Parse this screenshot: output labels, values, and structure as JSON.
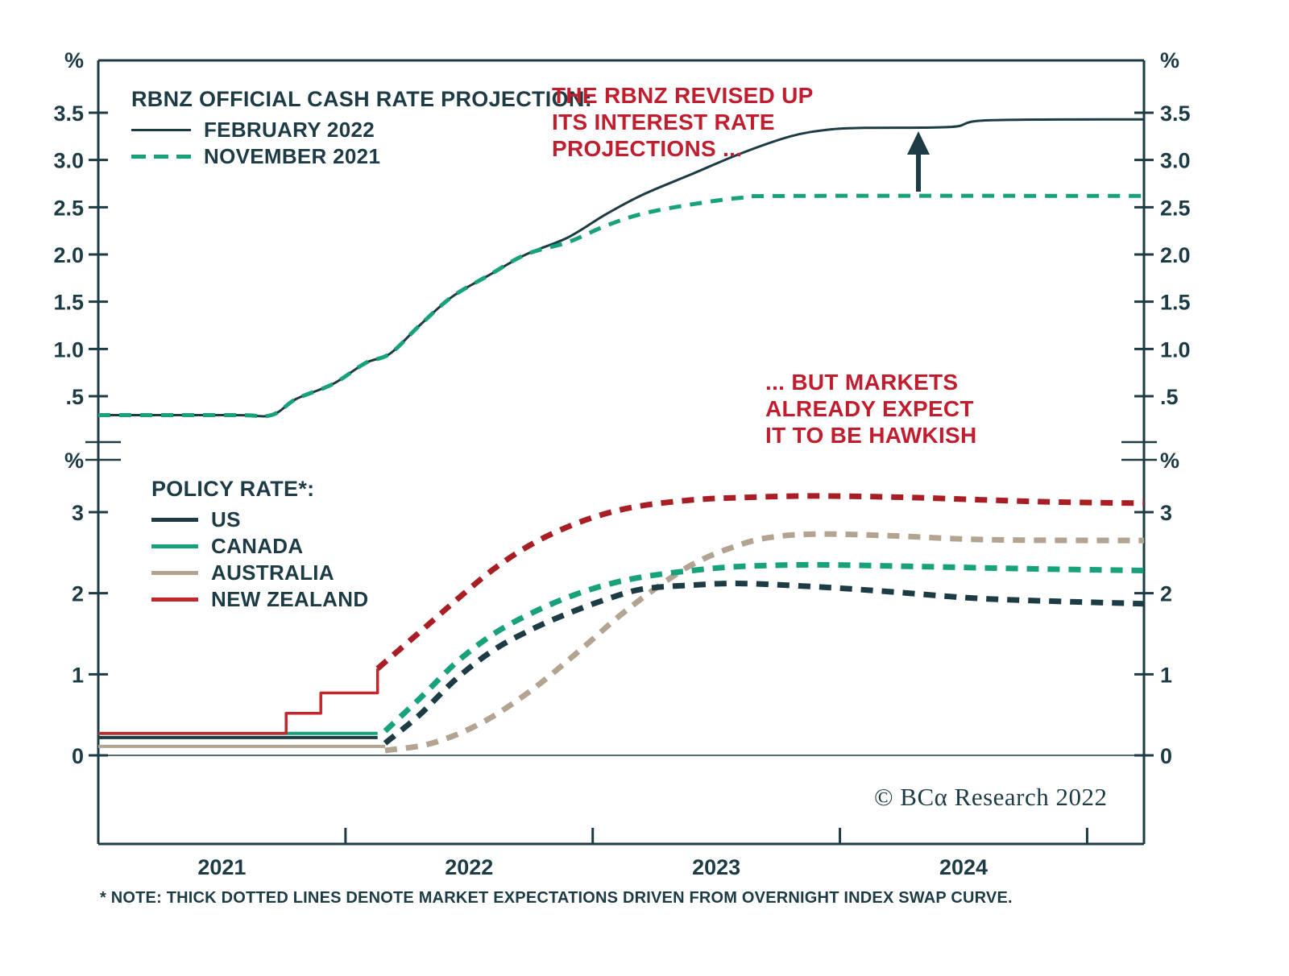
{
  "colors": {
    "dark": "#1d3b45",
    "green": "#17a27b",
    "red_annotation": "#c01e2e",
    "nz_red": "#c1272d",
    "nz_dashed_red": "#a81e24",
    "tan": "#b3a492"
  },
  "top_legend": {
    "title": "RBNZ OFFICIAL CASH RATE PROJECTION:",
    "items": [
      {
        "label": "FEBRUARY 2022",
        "style": "solid",
        "color_key": "dark"
      },
      {
        "label": "NOVEMBER 2021",
        "style": "dashed",
        "color_key": "green"
      }
    ]
  },
  "bottom_legend": {
    "title": "POLICY RATE*:",
    "items": [
      {
        "label": "US",
        "color_key": "dark"
      },
      {
        "label": "CANADA",
        "color_key": "green"
      },
      {
        "label": "AUSTRALIA",
        "color_key": "tan"
      },
      {
        "label": "NEW ZEALAND",
        "color_key": "nz_red"
      }
    ]
  },
  "annotations": {
    "top": "THE RBNZ REVISED UP\nITS INTEREST RATE\nPROJECTIONS ...",
    "bottom": "... BUT MARKETS\nALREADY EXPECT\nIT TO BE HAWKISH"
  },
  "copyright": "© BCα Research 2022",
  "footer_note": "* NOTE: THICK DOTTED LINES DENOTE MARKET EXPECTATIONS DRIVEN FROM OVERNIGHT INDEX SWAP CURVE.",
  "chart_data": {
    "type": "line",
    "x_axis": {
      "range": [
        2021.0,
        2025.23
      ],
      "tick_positions": [
        2022,
        2023,
        2024,
        2025
      ],
      "year_labels": [
        {
          "label": "2021",
          "x": 2021.5
        },
        {
          "label": "2022",
          "x": 2022.5
        },
        {
          "label": "2023",
          "x": 2023.5
        },
        {
          "label": "2024",
          "x": 2024.5
        }
      ]
    },
    "panels": [
      {
        "name": "RBNZ Official Cash Rate Projection",
        "unit": "%",
        "ylim": [
          0,
          4.05
        ],
        "yticks": [
          {
            "v": 3.5,
            "label": "3.5"
          },
          {
            "v": 3.0,
            "label": "3.0"
          },
          {
            "v": 2.5,
            "label": "2.5"
          },
          {
            "v": 2.0,
            "label": "2.0"
          },
          {
            "v": 1.5,
            "label": "1.5"
          },
          {
            "v": 1.0,
            "label": "1.0"
          },
          {
            "v": 0.5,
            "label": ".5"
          }
        ],
        "series": [
          {
            "name": "FEBRUARY 2022",
            "style": "solid",
            "color_key": "dark",
            "width": 3,
            "smooth": true,
            "points": [
              [
                2021.0,
                0.3
              ],
              [
                2021.55,
                0.3
              ],
              [
                2021.7,
                0.3
              ],
              [
                2021.8,
                0.47
              ],
              [
                2021.95,
                0.63
              ],
              [
                2022.08,
                0.85
              ],
              [
                2022.18,
                0.95
              ],
              [
                2022.3,
                1.25
              ],
              [
                2022.43,
                1.55
              ],
              [
                2022.58,
                1.78
              ],
              [
                2022.73,
                2.0
              ],
              [
                2022.9,
                2.18
              ],
              [
                2023.05,
                2.42
              ],
              [
                2023.2,
                2.63
              ],
              [
                2023.4,
                2.85
              ],
              [
                2023.6,
                3.07
              ],
              [
                2023.8,
                3.25
              ],
              [
                2023.95,
                3.32
              ],
              [
                2024.1,
                3.34
              ],
              [
                2024.45,
                3.35
              ],
              [
                2024.6,
                3.42
              ],
              [
                2025.23,
                3.43
              ]
            ]
          },
          {
            "name": "NOVEMBER 2021",
            "style": "dashed",
            "color_key": "green",
            "width": 5,
            "smooth": true,
            "points": [
              [
                2021.0,
                0.3
              ],
              [
                2021.55,
                0.3
              ],
              [
                2021.7,
                0.3
              ],
              [
                2021.8,
                0.47
              ],
              [
                2021.95,
                0.63
              ],
              [
                2022.08,
                0.85
              ],
              [
                2022.18,
                0.95
              ],
              [
                2022.3,
                1.25
              ],
              [
                2022.43,
                1.55
              ],
              [
                2022.58,
                1.78
              ],
              [
                2022.73,
                2.0
              ],
              [
                2022.9,
                2.13
              ],
              [
                2023.05,
                2.3
              ],
              [
                2023.2,
                2.43
              ],
              [
                2023.4,
                2.53
              ],
              [
                2023.6,
                2.6
              ],
              [
                2023.8,
                2.62
              ],
              [
                2025.23,
                2.62
              ]
            ]
          }
        ]
      },
      {
        "name": "Policy Rate",
        "unit": "%",
        "ylim": [
          0,
          3.64
        ],
        "yticks": [
          {
            "v": 3,
            "label": "3"
          },
          {
            "v": 2,
            "label": "2"
          },
          {
            "v": 1,
            "label": "1"
          },
          {
            "v": 0,
            "label": "0"
          }
        ],
        "series": [
          {
            "name": "AUSTRALIA history",
            "style": "solid",
            "color_key": "tan",
            "width": 4,
            "smooth": false,
            "points": [
              [
                2021.0,
                0.11
              ],
              [
                2022.16,
                0.11
              ]
            ]
          },
          {
            "name": "US history",
            "style": "solid",
            "color_key": "dark",
            "width": 4,
            "smooth": false,
            "points": [
              [
                2021.0,
                0.22
              ],
              [
                2022.13,
                0.22
              ]
            ]
          },
          {
            "name": "CANADA history",
            "style": "solid",
            "color_key": "green",
            "width": 4,
            "smooth": false,
            "points": [
              [
                2021.0,
                0.27
              ],
              [
                2022.13,
                0.27
              ]
            ]
          },
          {
            "name": "NEW ZEALAND history",
            "style": "solid",
            "color_key": "nz_red",
            "width": 3.5,
            "smooth": false,
            "points": [
              [
                2021.0,
                0.27
              ],
              [
                2021.76,
                0.27
              ],
              [
                2021.76,
                0.52
              ],
              [
                2021.9,
                0.52
              ],
              [
                2021.9,
                0.77
              ],
              [
                2022.13,
                0.77
              ],
              [
                2022.13,
                1.07
              ]
            ]
          },
          {
            "name": "AUSTRALIA market expectations",
            "style": "dashed",
            "color_key": "tan",
            "width": 7,
            "smooth": true,
            "points": [
              [
                2022.16,
                0.06
              ],
              [
                2022.35,
                0.15
              ],
              [
                2022.55,
                0.4
              ],
              [
                2022.75,
                0.8
              ],
              [
                2022.95,
                1.3
              ],
              [
                2023.1,
                1.7
              ],
              [
                2023.25,
                2.05
              ],
              [
                2023.4,
                2.35
              ],
              [
                2023.55,
                2.55
              ],
              [
                2023.7,
                2.68
              ],
              [
                2023.9,
                2.73
              ],
              [
                2024.2,
                2.71
              ],
              [
                2024.6,
                2.66
              ],
              [
                2025.23,
                2.65
              ]
            ]
          },
          {
            "name": "US market expectations",
            "style": "dashed",
            "color_key": "dark",
            "width": 7,
            "smooth": true,
            "points": [
              [
                2022.16,
                0.15
              ],
              [
                2022.3,
                0.5
              ],
              [
                2022.45,
                0.95
              ],
              [
                2022.6,
                1.3
              ],
              [
                2022.75,
                1.55
              ],
              [
                2022.9,
                1.75
              ],
              [
                2023.05,
                1.92
              ],
              [
                2023.2,
                2.05
              ],
              [
                2023.4,
                2.1
              ],
              [
                2023.6,
                2.12
              ],
              [
                2023.9,
                2.08
              ],
              [
                2024.2,
                2.02
              ],
              [
                2024.6,
                1.93
              ],
              [
                2025.23,
                1.87
              ]
            ]
          },
          {
            "name": "CANADA market expectations",
            "style": "dashed",
            "color_key": "green",
            "width": 7,
            "smooth": true,
            "points": [
              [
                2022.16,
                0.3
              ],
              [
                2022.3,
                0.7
              ],
              [
                2022.45,
                1.15
              ],
              [
                2022.6,
                1.5
              ],
              [
                2022.75,
                1.75
              ],
              [
                2022.9,
                1.95
              ],
              [
                2023.05,
                2.1
              ],
              [
                2023.2,
                2.2
              ],
              [
                2023.4,
                2.28
              ],
              [
                2023.6,
                2.33
              ],
              [
                2023.9,
                2.35
              ],
              [
                2024.3,
                2.33
              ],
              [
                2024.8,
                2.3
              ],
              [
                2025.23,
                2.28
              ]
            ]
          },
          {
            "name": "NEW ZEALAND market expectations",
            "style": "dashed",
            "color_key": "nz_dashed_red",
            "width": 7,
            "smooth": true,
            "points": [
              [
                2022.13,
                1.07
              ],
              [
                2022.3,
                1.52
              ],
              [
                2022.45,
                1.92
              ],
              [
                2022.6,
                2.3
              ],
              [
                2022.75,
                2.6
              ],
              [
                2022.9,
                2.82
              ],
              [
                2023.05,
                2.98
              ],
              [
                2023.2,
                3.08
              ],
              [
                2023.4,
                3.15
              ],
              [
                2023.6,
                3.18
              ],
              [
                2023.9,
                3.2
              ],
              [
                2024.3,
                3.18
              ],
              [
                2024.8,
                3.13
              ],
              [
                2025.23,
                3.11
              ]
            ]
          }
        ]
      }
    ]
  }
}
